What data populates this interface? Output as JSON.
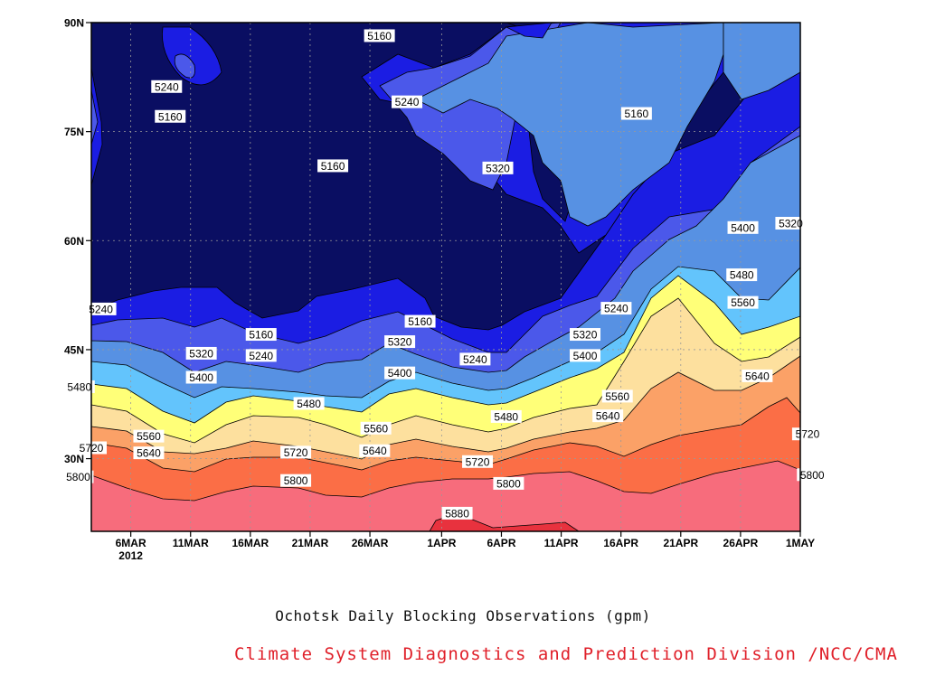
{
  "chart_data": {
    "type": "contour",
    "title": "Ochotsk Daily Blocking Observations (gpm)",
    "credit": "Climate System Diagnostics and Prediction Division /NCC/CMA",
    "x_axis": {
      "tick_labels": [
        "6MAR",
        "11MAR",
        "16MAR",
        "21MAR",
        "26MAR",
        "1APR",
        "6APR",
        "11APR",
        "16APR",
        "21APR",
        "26APR",
        "1MAY"
      ],
      "year_label": "2012",
      "range_days": [
        -3.3,
        56
      ]
    },
    "y_axis": {
      "tick_labels": [
        "90N",
        "75N",
        "60N",
        "45N",
        "30N"
      ],
      "range": [
        20,
        90
      ]
    },
    "grid": true,
    "contour_levels": [
      5160,
      5240,
      5320,
      5400,
      5480,
      5560,
      5640,
      5720,
      5800,
      5880
    ],
    "fill_colors": [
      "#0a0e62",
      "#1b1de3",
      "#4b58ea",
      "#5791e3",
      "#63c4fc",
      "#ffff78",
      "#fde09e",
      "#fba167",
      "#fb6e46",
      "#f76c7c",
      "#e8323e"
    ],
    "contour_labels": [
      {
        "text": "5160",
        "day": 20.8,
        "lat": 88.2
      },
      {
        "text": "5240",
        "day": 3.0,
        "lat": 81.2
      },
      {
        "text": "5160",
        "day": 3.3,
        "lat": 77.1
      },
      {
        "text": "5240",
        "day": 23.1,
        "lat": 79.1
      },
      {
        "text": "5160",
        "day": 42.3,
        "lat": 77.5
      },
      {
        "text": "5160",
        "day": 16.9,
        "lat": 70.3
      },
      {
        "text": "5320",
        "day": 30.7,
        "lat": 70.0
      },
      {
        "text": "5400",
        "day": 51.2,
        "lat": 61.8
      },
      {
        "text": "5320",
        "day": 55.2,
        "lat": 62.4
      },
      {
        "text": "5480",
        "day": 51.1,
        "lat": 55.3
      },
      {
        "text": "5560",
        "day": 51.2,
        "lat": 51.5
      },
      {
        "text": "5240",
        "day": -2.5,
        "lat": 50.6
      },
      {
        "text": "5240",
        "day": 40.6,
        "lat": 50.7
      },
      {
        "text": "5160",
        "day": 10.9,
        "lat": 47.1
      },
      {
        "text": "5160",
        "day": 24.2,
        "lat": 48.9
      },
      {
        "text": "5320",
        "day": 38.0,
        "lat": 47.1
      },
      {
        "text": "5320",
        "day": 22.5,
        "lat": 46.1
      },
      {
        "text": "5320",
        "day": 5.9,
        "lat": 44.5
      },
      {
        "text": "5240",
        "day": 10.9,
        "lat": 44.2
      },
      {
        "text": "5400",
        "day": 38.0,
        "lat": 44.2
      },
      {
        "text": "5240",
        "day": 28.8,
        "lat": 43.7
      },
      {
        "text": "5400",
        "day": 5.9,
        "lat": 41.2
      },
      {
        "text": "5400",
        "day": 22.5,
        "lat": 41.8
      },
      {
        "text": "5640",
        "day": 52.4,
        "lat": 41.4
      },
      {
        "text": "5480",
        "day": -4.3,
        "lat": 39.9
      },
      {
        "text": "5560",
        "day": 40.7,
        "lat": 38.6
      },
      {
        "text": "5480",
        "day": 14.9,
        "lat": 37.6
      },
      {
        "text": "5480",
        "day": 31.4,
        "lat": 35.8
      },
      {
        "text": "5640",
        "day": 39.9,
        "lat": 35.9
      },
      {
        "text": "5560",
        "day": 20.5,
        "lat": 34.2
      },
      {
        "text": "5560",
        "day": 1.5,
        "lat": 33.1
      },
      {
        "text": "5720",
        "day": 56.6,
        "lat": 33.4
      },
      {
        "text": "5720",
        "day": -3.3,
        "lat": 31.5
      },
      {
        "text": "5640",
        "day": 1.5,
        "lat": 30.8
      },
      {
        "text": "5720",
        "day": 13.8,
        "lat": 30.9
      },
      {
        "text": "5640",
        "day": 20.4,
        "lat": 31.1
      },
      {
        "text": "5720",
        "day": 29.0,
        "lat": 29.6
      },
      {
        "text": "5800",
        "day": -4.4,
        "lat": 27.5
      },
      {
        "text": "5800",
        "day": 13.8,
        "lat": 27.0
      },
      {
        "text": "5800",
        "day": 31.6,
        "lat": 26.6
      },
      {
        "text": "5800",
        "day": 57.0,
        "lat": 27.8
      },
      {
        "text": "5880",
        "day": 27.3,
        "lat": 22.5
      }
    ]
  }
}
